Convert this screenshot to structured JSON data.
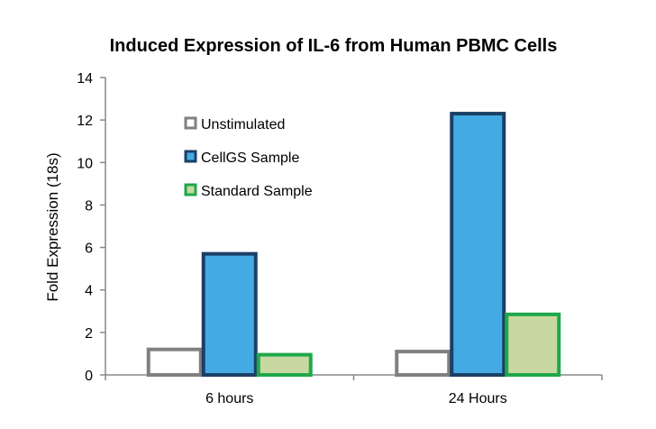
{
  "chart_data": {
    "type": "bar",
    "title": "Induced Expression of IL-6 from Human PBMC Cells",
    "xlabel": "",
    "ylabel": "Fold Expression (18s)",
    "ylim": [
      0,
      14
    ],
    "yticks": [
      0,
      2,
      4,
      6,
      8,
      10,
      12,
      14
    ],
    "categories": [
      "6 hours",
      "24 Hours"
    ],
    "series": [
      {
        "name": "Unstimulated",
        "values": [
          1.2,
          1.1
        ],
        "fill": "#ffffff",
        "stroke": "#808080"
      },
      {
        "name": "CellGS Sample",
        "values": [
          5.7,
          12.3
        ],
        "fill": "#44aae4",
        "stroke": "#1b3f66"
      },
      {
        "name": "Standard Sample",
        "values": [
          0.95,
          2.85
        ],
        "fill": "#c7d9a1",
        "stroke": "#1fa84a"
      }
    ],
    "legend_position": "top-left",
    "grid": false
  }
}
